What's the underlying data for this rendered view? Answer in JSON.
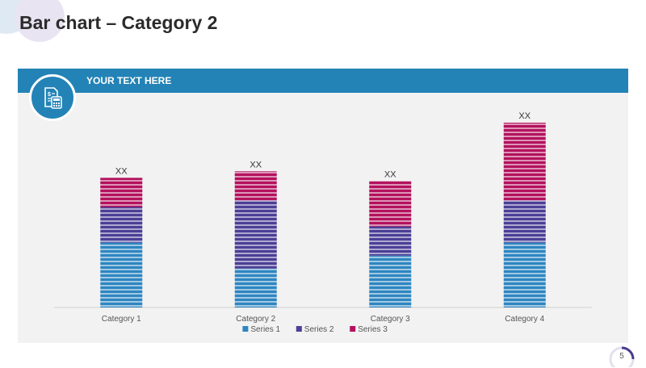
{
  "slide": {
    "title": "Bar chart – Category 2",
    "banner_text": "YOUR TEXT HERE",
    "page_number": "5",
    "icon": "invoice-calculator-icon",
    "colors": {
      "banner": "#2383b6",
      "panel": "#f2f2f2",
      "ring_accent": "#4b3a8f"
    }
  },
  "chart_data": {
    "type": "bar",
    "stacked": true,
    "categories": [
      "Category 1",
      "Category 2",
      "Category 3",
      "Category 4"
    ],
    "series": [
      {
        "name": "Series 1",
        "color": "#2e86c1",
        "values": [
          2.0,
          1.2,
          1.6,
          2.0
        ]
      },
      {
        "name": "Series 2",
        "color": "#4b3f96",
        "values": [
          1.1,
          2.1,
          0.9,
          1.3
        ]
      },
      {
        "name": "Series 3",
        "color": "#b3125d",
        "values": [
          0.9,
          0.9,
          1.4,
          2.4
        ]
      }
    ],
    "data_labels": [
      "XX",
      "XX",
      "XX",
      "XX"
    ],
    "ylim": [
      0,
      6
    ],
    "grid": false,
    "legend": "bottom"
  }
}
